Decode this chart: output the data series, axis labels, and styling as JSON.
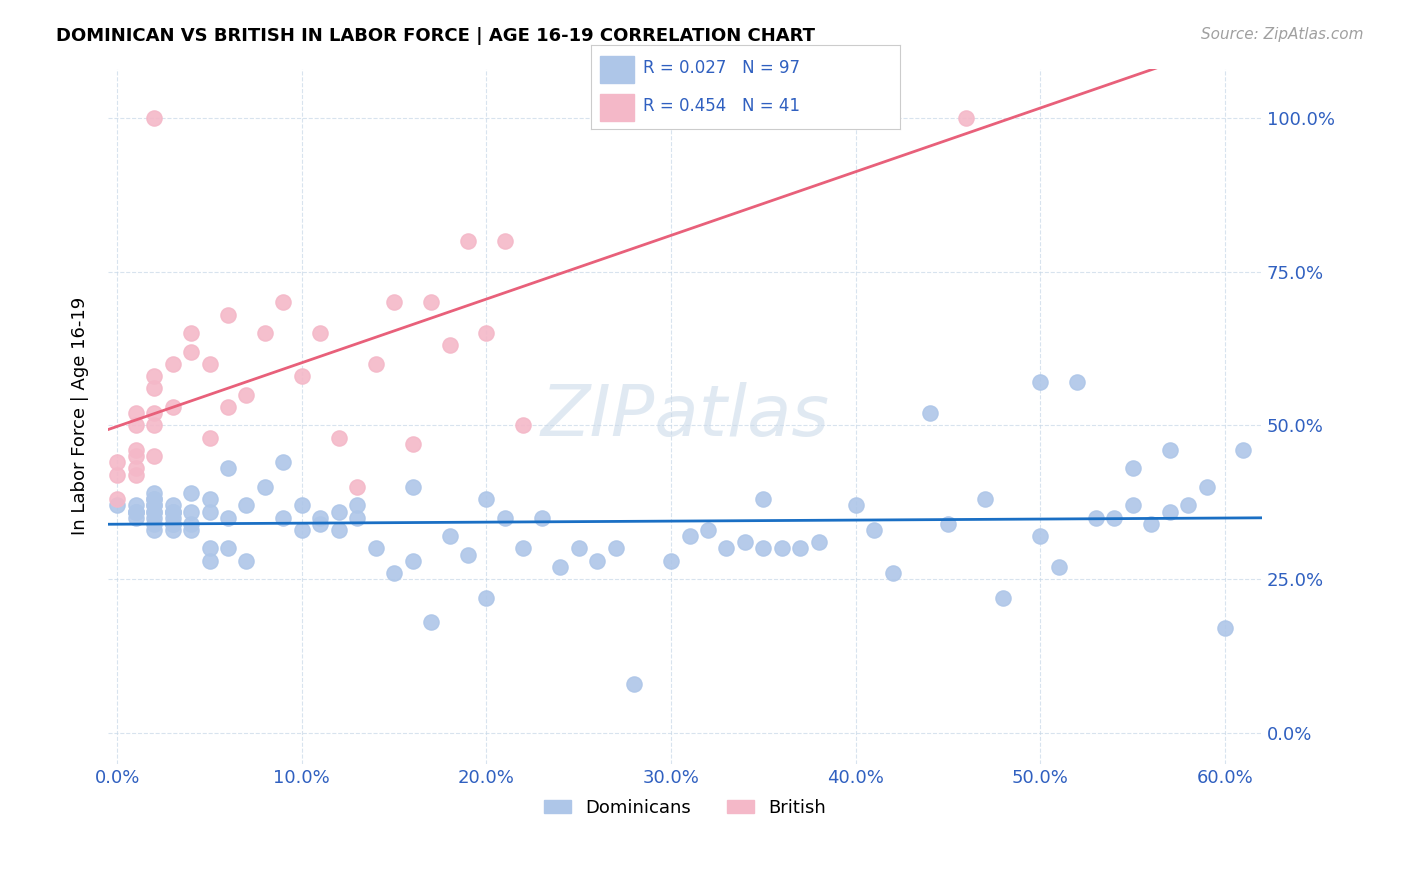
{
  "title": "DOMINICAN VS BRITISH IN LABOR FORCE | AGE 16-19 CORRELATION CHART",
  "source": "Source: ZipAtlas.com",
  "xlabel_ticks": [
    "0.0%",
    "10.0%",
    "20.0%",
    "30.0%",
    "40.0%",
    "50.0%",
    "60.0%"
  ],
  "xlabel_vals": [
    0.0,
    0.1,
    0.2,
    0.3,
    0.4,
    0.5,
    0.6
  ],
  "ylabel_ticks": [
    "0.0%",
    "25.0%",
    "50.0%",
    "75.0%",
    "100.0%"
  ],
  "ylabel_vals": [
    0.0,
    0.25,
    0.5,
    0.75,
    1.0
  ],
  "xlim": [
    -0.005,
    0.62
  ],
  "ylim": [
    -0.05,
    1.08
  ],
  "dominican_color": "#aec6e8",
  "british_color": "#f4b8c8",
  "dominican_R": 0.027,
  "dominican_N": 97,
  "british_R": 0.454,
  "british_N": 41,
  "watermark": "ZIPatlas",
  "legend_text_color": "#3060c0",
  "dom_trend_color": "#1a6fc4",
  "brit_trend_color": "#e8607a",
  "dominican_x": [
    0.0,
    0.01,
    0.01,
    0.01,
    0.01,
    0.01,
    0.02,
    0.02,
    0.02,
    0.02,
    0.02,
    0.02,
    0.02,
    0.02,
    0.02,
    0.02,
    0.03,
    0.03,
    0.03,
    0.03,
    0.03,
    0.03,
    0.03,
    0.03,
    0.04,
    0.04,
    0.04,
    0.04,
    0.05,
    0.05,
    0.05,
    0.05,
    0.06,
    0.06,
    0.06,
    0.07,
    0.07,
    0.08,
    0.09,
    0.09,
    0.1,
    0.1,
    0.11,
    0.11,
    0.12,
    0.12,
    0.13,
    0.13,
    0.14,
    0.15,
    0.16,
    0.16,
    0.17,
    0.18,
    0.19,
    0.2,
    0.2,
    0.21,
    0.22,
    0.23,
    0.24,
    0.25,
    0.26,
    0.27,
    0.28,
    0.3,
    0.31,
    0.32,
    0.33,
    0.34,
    0.35,
    0.35,
    0.36,
    0.37,
    0.38,
    0.4,
    0.41,
    0.42,
    0.44,
    0.45,
    0.47,
    0.48,
    0.5,
    0.5,
    0.51,
    0.52,
    0.53,
    0.54,
    0.55,
    0.55,
    0.56,
    0.57,
    0.57,
    0.58,
    0.59,
    0.6,
    0.61
  ],
  "dominican_y": [
    0.37,
    0.35,
    0.36,
    0.36,
    0.36,
    0.37,
    0.33,
    0.34,
    0.35,
    0.36,
    0.36,
    0.37,
    0.37,
    0.38,
    0.38,
    0.39,
    0.33,
    0.34,
    0.34,
    0.35,
    0.36,
    0.36,
    0.36,
    0.37,
    0.33,
    0.34,
    0.36,
    0.39,
    0.28,
    0.3,
    0.36,
    0.38,
    0.3,
    0.35,
    0.43,
    0.28,
    0.37,
    0.4,
    0.35,
    0.44,
    0.33,
    0.37,
    0.34,
    0.35,
    0.33,
    0.36,
    0.35,
    0.37,
    0.3,
    0.26,
    0.28,
    0.4,
    0.18,
    0.32,
    0.29,
    0.22,
    0.38,
    0.35,
    0.3,
    0.35,
    0.27,
    0.3,
    0.28,
    0.3,
    0.08,
    0.28,
    0.32,
    0.33,
    0.3,
    0.31,
    0.3,
    0.38,
    0.3,
    0.3,
    0.31,
    0.37,
    0.33,
    0.26,
    0.52,
    0.34,
    0.38,
    0.22,
    0.57,
    0.32,
    0.27,
    0.57,
    0.35,
    0.35,
    0.37,
    0.43,
    0.34,
    0.36,
    0.46,
    0.37,
    0.4,
    0.17,
    0.46
  ],
  "british_x": [
    0.0,
    0.0,
    0.0,
    0.01,
    0.01,
    0.01,
    0.01,
    0.01,
    0.01,
    0.02,
    0.02,
    0.02,
    0.02,
    0.02,
    0.02,
    0.03,
    0.03,
    0.04,
    0.04,
    0.05,
    0.05,
    0.06,
    0.06,
    0.07,
    0.08,
    0.09,
    0.1,
    0.11,
    0.12,
    0.13,
    0.14,
    0.15,
    0.16,
    0.17,
    0.18,
    0.19,
    0.2,
    0.21,
    0.22,
    0.3,
    0.46
  ],
  "british_y": [
    0.38,
    0.42,
    0.44,
    0.42,
    0.43,
    0.45,
    0.46,
    0.5,
    0.52,
    0.45,
    0.5,
    0.52,
    0.56,
    0.58,
    1.0,
    0.53,
    0.6,
    0.62,
    0.65,
    0.48,
    0.6,
    0.53,
    0.68,
    0.55,
    0.65,
    0.7,
    0.58,
    0.65,
    0.48,
    0.4,
    0.6,
    0.7,
    0.47,
    0.7,
    0.63,
    0.8,
    0.65,
    0.8,
    0.5,
    1.0,
    1.0
  ]
}
